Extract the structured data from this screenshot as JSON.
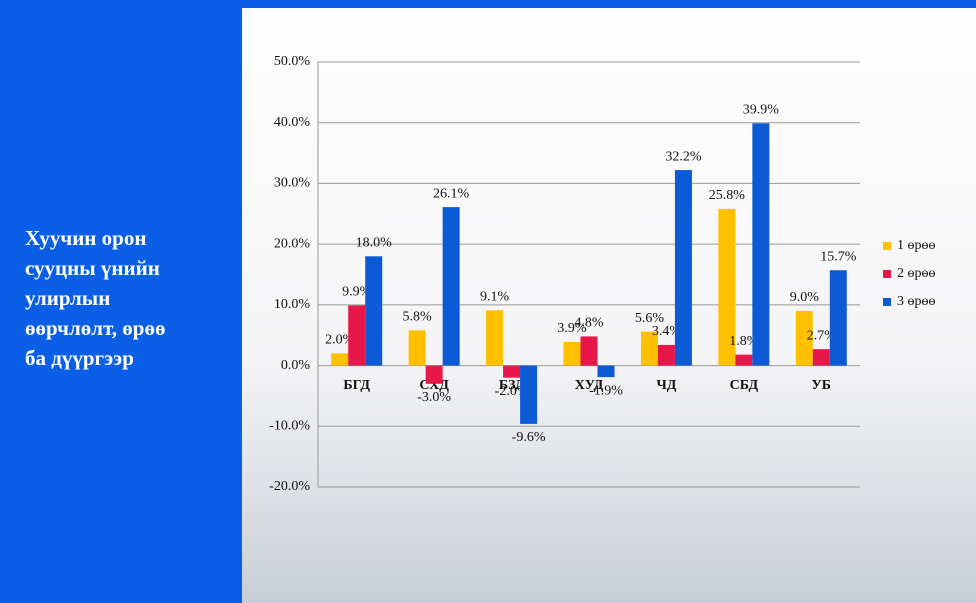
{
  "chart_data": {
    "type": "bar",
    "title": [
      "Хуучин орон",
      "сууцны үнийн",
      "улирлын",
      "өөрчлөлт, өрөө",
      "ба дүүргээр"
    ],
    "categories": [
      "БГД",
      "СХД",
      "БЗД",
      "ХУД",
      "ЧД",
      "СБД",
      "УБ"
    ],
    "series": [
      {
        "name": "1 өрөө",
        "color": "#ffc000",
        "values": [
          2.0,
          5.8,
          9.1,
          3.9,
          5.6,
          25.8,
          9.0
        ],
        "value_labels": [
          "2.0%",
          "5.8%",
          "9.1%",
          "3.9%",
          "5.6%",
          "25.8%",
          "9.0%"
        ]
      },
      {
        "name": "2 өрөө",
        "color": "#e8174a",
        "values": [
          9.9,
          -3.0,
          -2.0,
          4.8,
          3.4,
          1.8,
          2.7
        ],
        "value_labels": [
          "9.9%",
          "-3.0%",
          "-2.0%",
          "4.8%",
          "3.4%",
          "1.8%",
          "2.7%"
        ]
      },
      {
        "name": "3 өрөө",
        "color": "#0d5ad6",
        "values": [
          18.0,
          26.1,
          -9.6,
          -1.9,
          32.2,
          39.9,
          15.7
        ],
        "value_labels": [
          "18.0%",
          "26.1%",
          "-9.6%",
          "-1.9%",
          "32.2%",
          "39.9%",
          "15.7%"
        ]
      }
    ],
    "ylim": [
      -20,
      50
    ],
    "yticks": [
      {
        "value": -20,
        "label": "-20.0%"
      },
      {
        "value": -10,
        "label": "-10.0%"
      },
      {
        "value": 0,
        "label": "0.0%"
      },
      {
        "value": 10,
        "label": "10.0%"
      },
      {
        "value": 20,
        "label": "20.0%"
      },
      {
        "value": 30,
        "label": "30.0%"
      },
      {
        "value": 40,
        "label": "40.0%"
      },
      {
        "value": 50,
        "label": "50.0%"
      }
    ],
    "grid": true,
    "legend": "right"
  }
}
